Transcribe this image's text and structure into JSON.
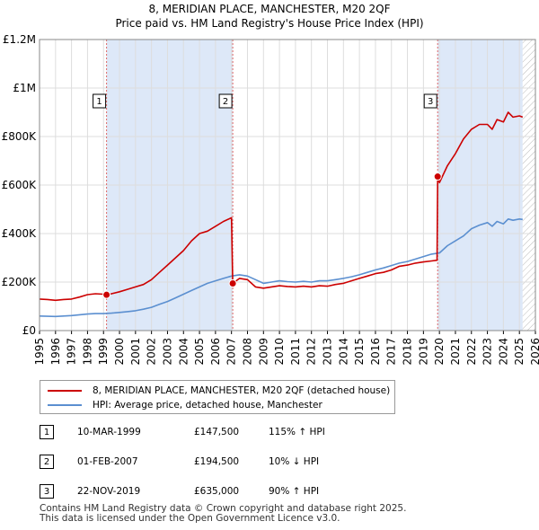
{
  "chart_data": {
    "type": "line",
    "title": "8, MERIDIAN PLACE, MANCHESTER, M20 2QF",
    "subtitle": "Price paid vs. HM Land Registry's House Price Index (HPI)",
    "xlim": [
      1995,
      2026
    ],
    "ylim": [
      0,
      1200000
    ],
    "x_ticks": [
      1995,
      1996,
      1997,
      1998,
      1999,
      2000,
      2001,
      2002,
      2003,
      2004,
      2005,
      2006,
      2007,
      2008,
      2009,
      2010,
      2011,
      2012,
      2013,
      2014,
      2015,
      2016,
      2017,
      2018,
      2019,
      2020,
      2021,
      2022,
      2023,
      2024,
      2025,
      2026
    ],
    "y_ticks": [
      {
        "value": 0,
        "label": "£0"
      },
      {
        "value": 200000,
        "label": "£200K"
      },
      {
        "value": 400000,
        "label": "£400K"
      },
      {
        "value": 600000,
        "label": "£600K"
      },
      {
        "value": 800000,
        "label": "£800K"
      },
      {
        "value": 1000000,
        "label": "£1M"
      },
      {
        "value": 1200000,
        "label": "£1.2M"
      }
    ],
    "forecast_start": 2025.2,
    "shaded_periods": [
      [
        1999.19,
        2007.08
      ],
      [
        2019.89,
        2025.2
      ]
    ],
    "colors": {
      "property": "#cc0000",
      "hpi": "#5b8fd0",
      "shade": "#dde8f8",
      "grid": "#dddddd",
      "marker_line": "#dd6666"
    },
    "series": [
      {
        "name": "8, MERIDIAN PLACE, MANCHESTER, M20 2QF (detached house)",
        "color": "#cc0000",
        "x": [
          1995.0,
          1995.5,
          1996.0,
          1996.5,
          1997.0,
          1997.5,
          1998.0,
          1998.5,
          1999.0,
          1999.19,
          1999.5,
          2000.0,
          2000.5,
          2001.0,
          2001.5,
          2002.0,
          2002.5,
          2003.0,
          2003.5,
          2004.0,
          2004.5,
          2005.0,
          2005.5,
          2006.0,
          2006.5,
          2007.0,
          2007.08,
          2007.5,
          2008.0,
          2008.5,
          2009.0,
          2009.5,
          2010.0,
          2010.5,
          2011.0,
          2011.5,
          2012.0,
          2012.5,
          2013.0,
          2013.5,
          2014.0,
          2014.5,
          2015.0,
          2015.5,
          2016.0,
          2016.5,
          2017.0,
          2017.5,
          2018.0,
          2018.5,
          2019.0,
          2019.5,
          2019.85,
          2019.89,
          2020.0,
          2020.5,
          2021.0,
          2021.5,
          2022.0,
          2022.5,
          2023.0,
          2023.3,
          2023.6,
          2024.0,
          2024.3,
          2024.6,
          2025.0,
          2025.2
        ],
        "y": [
          130000,
          128000,
          125000,
          128000,
          130000,
          138000,
          148000,
          152000,
          150000,
          147500,
          152000,
          160000,
          170000,
          180000,
          190000,
          210000,
          240000,
          270000,
          300000,
          330000,
          370000,
          400000,
          410000,
          430000,
          450000,
          465000,
          194500,
          215000,
          210000,
          180000,
          175000,
          180000,
          185000,
          182000,
          180000,
          183000,
          180000,
          185000,
          183000,
          190000,
          195000,
          205000,
          215000,
          225000,
          235000,
          240000,
          250000,
          265000,
          270000,
          278000,
          283000,
          287000,
          290000,
          635000,
          610000,
          680000,
          730000,
          790000,
          830000,
          850000,
          850000,
          830000,
          870000,
          860000,
          900000,
          880000,
          885000,
          880000
        ]
      },
      {
        "name": "HPI: Average price, detached house, Manchester",
        "color": "#5b8fd0",
        "x": [
          1995.0,
          1995.5,
          1996.0,
          1996.5,
          1997.0,
          1997.5,
          1998.0,
          1998.5,
          1999.0,
          1999.5,
          2000.0,
          2000.5,
          2001.0,
          2001.5,
          2002.0,
          2002.5,
          2003.0,
          2003.5,
          2004.0,
          2004.5,
          2005.0,
          2005.5,
          2006.0,
          2006.5,
          2007.0,
          2007.5,
          2008.0,
          2008.5,
          2009.0,
          2009.5,
          2010.0,
          2010.5,
          2011.0,
          2011.5,
          2012.0,
          2012.5,
          2013.0,
          2013.5,
          2014.0,
          2014.5,
          2015.0,
          2015.5,
          2016.0,
          2016.5,
          2017.0,
          2017.5,
          2018.0,
          2018.5,
          2019.0,
          2019.5,
          2020.0,
          2020.5,
          2021.0,
          2021.5,
          2022.0,
          2022.5,
          2023.0,
          2023.3,
          2023.6,
          2024.0,
          2024.3,
          2024.6,
          2025.0,
          2025.2
        ],
        "y": [
          60000,
          59000,
          58000,
          60000,
          62000,
          65000,
          68000,
          70000,
          70000,
          72000,
          75000,
          78000,
          82000,
          88000,
          96000,
          108000,
          120000,
          135000,
          150000,
          165000,
          180000,
          195000,
          205000,
          215000,
          225000,
          230000,
          225000,
          210000,
          195000,
          200000,
          205000,
          202000,
          200000,
          203000,
          200000,
          205000,
          205000,
          210000,
          215000,
          222000,
          230000,
          240000,
          250000,
          258000,
          268000,
          278000,
          285000,
          295000,
          305000,
          315000,
          320000,
          350000,
          370000,
          390000,
          420000,
          435000,
          445000,
          430000,
          450000,
          440000,
          460000,
          455000,
          460000,
          458000
        ]
      }
    ],
    "sales": [
      {
        "number": "1",
        "date": "10-MAR-1999",
        "price": "£147,500",
        "hpi": "115% ↑ HPI",
        "x": 1999.19,
        "y": 147500
      },
      {
        "number": "2",
        "date": "01-FEB-2007",
        "price": "£194,500",
        "hpi": "10% ↓ HPI",
        "x": 2007.08,
        "y": 194500
      },
      {
        "number": "3",
        "date": "22-NOV-2019",
        "price": "£635,000",
        "hpi": "90% ↑ HPI",
        "x": 2019.89,
        "y": 635000
      }
    ]
  },
  "footer": {
    "line1": "Contains HM Land Registry data © Crown copyright and database right 2025.",
    "line2": "This data is licensed under the Open Government Licence v3.0."
  }
}
